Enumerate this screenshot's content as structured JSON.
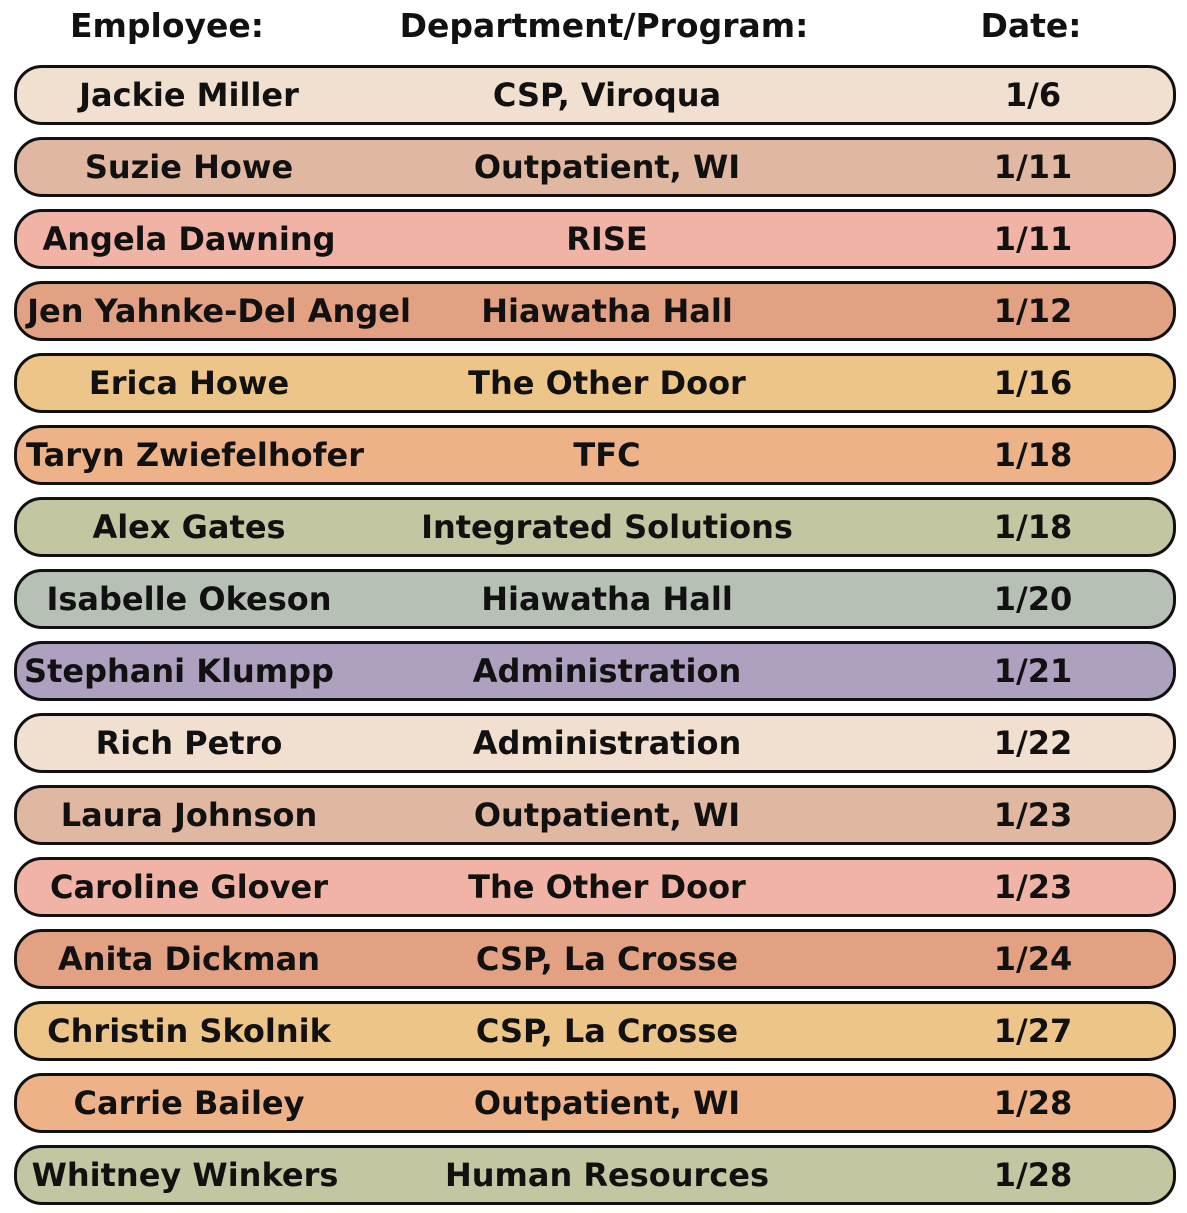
{
  "headers": {
    "employee": "Employee:",
    "department": "Department/Program:",
    "date": "Date:"
  },
  "rows": [
    {
      "employee": "Jackie Miller",
      "department": "CSP, Viroqua",
      "date": "1/6",
      "color": "#F1DFCF"
    },
    {
      "employee": "Suzie Howe",
      "department": "Outpatient, WI",
      "date": "1/11",
      "color": "#E0B7A0"
    },
    {
      "employee": "Angela Dawning",
      "department": "RISE",
      "date": "1/11",
      "color": "#F0B3A6"
    },
    {
      "employee": "Jen Yahnke-Del Angel",
      "department": "Hiawatha Hall",
      "date": "1/12",
      "color": "#E3A183"
    },
    {
      "employee": "Erica Howe",
      "department": "The Other Door",
      "date": "1/16",
      "color": "#EDC588"
    },
    {
      "employee": "Taryn Zwiefelhofer",
      "department": "TFC",
      "date": "1/18",
      "color": "#EDB287"
    },
    {
      "employee": "Alex Gates",
      "department": "Integrated Solutions",
      "date": "1/18",
      "color": "#C3C6A0"
    },
    {
      "employee": "Isabelle Okeson",
      "department": "Hiawatha Hall",
      "date": "1/20",
      "color": "#B6C0B5"
    },
    {
      "employee": "Stephani Klumpp",
      "department": "Administration",
      "date": "1/21",
      "color": "#ADA1BF"
    },
    {
      "employee": "Rich Petro",
      "department": "Administration",
      "date": "1/22",
      "color": "#F1DFCF"
    },
    {
      "employee": "Laura Johnson",
      "department": "Outpatient, WI",
      "date": "1/23",
      "color": "#E0B7A0"
    },
    {
      "employee": "Caroline Glover",
      "department": "The Other Door",
      "date": "1/23",
      "color": "#F0B3A6"
    },
    {
      "employee": "Anita Dickman",
      "department": "CSP, La Crosse",
      "date": "1/24",
      "color": "#E3A183"
    },
    {
      "employee": "Christin Skolnik",
      "department": "CSP, La Crosse",
      "date": "1/27",
      "color": "#EDC588"
    },
    {
      "employee": "Carrie Bailey",
      "department": "Outpatient, WI",
      "date": "1/28",
      "color": "#EDB287"
    },
    {
      "employee": "Whitney Winkers",
      "department": "Human Resources",
      "date": "1/28",
      "color": "#C3C6A0"
    }
  ]
}
